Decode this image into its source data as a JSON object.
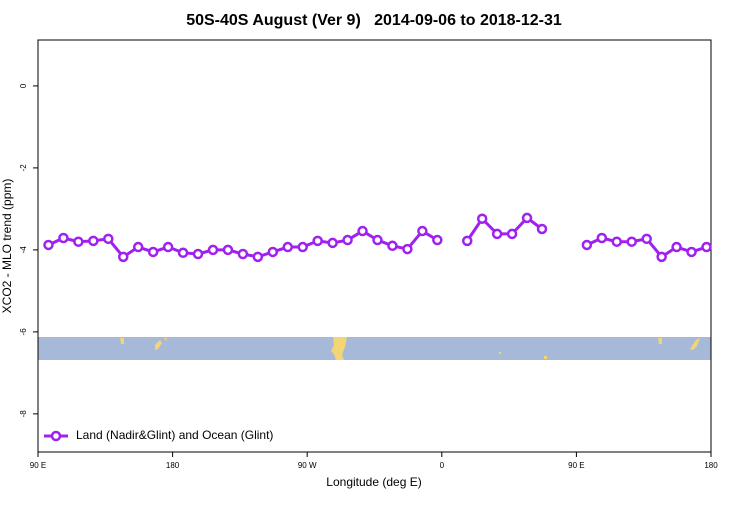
{
  "chart_data": {
    "type": "line",
    "title": "50S-40S August (Ver 9)   2014-09-06 to 2018-12-31",
    "xlabel": "Longitude (deg E)",
    "ylabel": "XCO2 - MLO trend (ppm)",
    "xlim": [
      90,
      540
    ],
    "ylim": [
      -8.93,
      1.12
    ],
    "xticks": [
      {
        "value": 90,
        "label": "90 E"
      },
      {
        "value": 180,
        "label": "180"
      },
      {
        "value": 270,
        "label": "90 W"
      },
      {
        "value": 360,
        "label": "0"
      },
      {
        "value": 450,
        "label": "90 E"
      },
      {
        "value": 540,
        "label": "180"
      }
    ],
    "yticks": [
      0,
      -2,
      -4,
      -6,
      -8
    ],
    "legend": "bottom-left",
    "x": [
      97,
      107,
      117,
      127,
      137,
      147,
      157,
      167,
      177,
      187,
      197,
      207,
      217,
      227,
      237,
      247,
      257,
      267,
      277,
      287,
      297,
      307,
      317,
      327,
      337,
      347,
      357,
      367,
      377,
      387,
      397,
      407,
      417,
      427,
      437,
      447,
      457,
      467,
      477,
      487,
      497,
      507,
      517,
      527,
      537
    ],
    "series": [
      {
        "name": "Land (Nadir&Glint) and Ocean (Glint)",
        "color": "#a020f0",
        "values": [
          -3.88,
          -3.71,
          -3.8,
          -3.78,
          -3.73,
          -4.17,
          -3.93,
          -4.05,
          -3.93,
          -4.07,
          -4.1,
          -4.0,
          -4.0,
          -4.1,
          -4.17,
          -4.05,
          -3.93,
          -3.93,
          -3.78,
          -3.83,
          -3.76,
          -3.54,
          -3.76,
          -3.9,
          -3.98,
          -3.54,
          -3.76,
          null,
          -3.78,
          -3.24,
          -3.61,
          -3.61,
          -3.22,
          -3.49,
          null,
          null,
          -3.88,
          -3.71,
          -3.8,
          -3.8,
          -3.73,
          -4.17,
          -3.93,
          -4.05,
          -3.93
        ]
      }
    ]
  }
}
